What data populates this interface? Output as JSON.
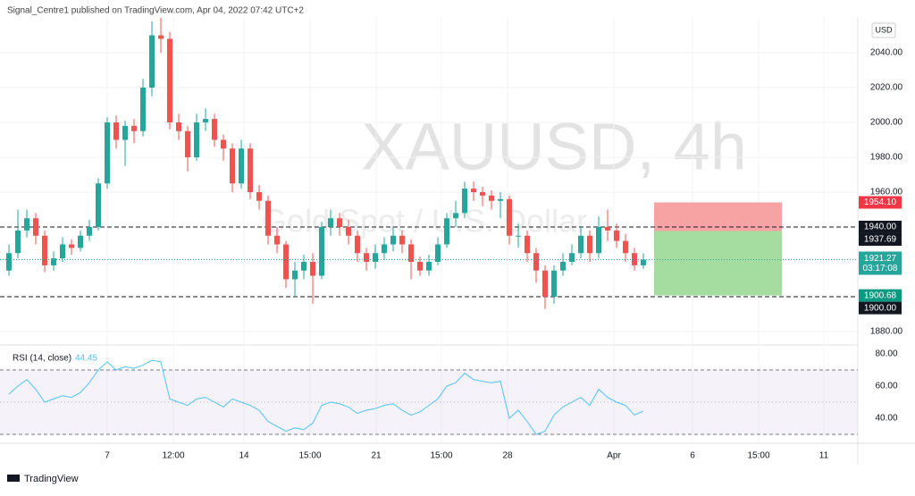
{
  "header": "Signal_Centre1 published on TradingView.com, Apr 04, 2022 07:42 UTC+2",
  "footer": "TradingView",
  "chart_data": [
    {
      "type": "candlestick",
      "watermark": "XAUUSD, 4h",
      "watermark_sub": "Gold Spot / U.S. Dollar",
      "currency": "USD",
      "open": [
        1915,
        1925,
        1938,
        1945,
        1935,
        1918,
        1922,
        1930,
        1928,
        1935,
        1940,
        1965,
        2000,
        1990,
        1998,
        1995,
        2020,
        2050,
        2048,
        2000,
        1995,
        1980,
        2000,
        2002,
        1990,
        1985,
        1965,
        1985,
        1960,
        1955,
        1935,
        1930,
        1910,
        1915,
        1920,
        1912,
        1940,
        1945,
        1940,
        1935,
        1925,
        1920,
        1925,
        1930,
        1935,
        1930,
        1920,
        1915,
        1920,
        1930,
        1945,
        1948,
        1962,
        1960,
        1958,
        1955,
        1956,
        1935,
        1935,
        1925,
        1915,
        1900,
        1915,
        1920,
        1925,
        1935,
        1925,
        1940,
        1938,
        1932,
        1925,
        1918
      ],
      "high": [
        1930,
        1950,
        1950,
        1948,
        1938,
        1926,
        1934,
        1933,
        1938,
        1944,
        1968,
        2003,
        2004,
        2001,
        2002,
        2025,
        2058,
        2060,
        2052,
        2005,
        1998,
        2005,
        2008,
        2005,
        1993,
        1988,
        1990,
        1988,
        1964,
        1958,
        1940,
        1932,
        1920,
        1924,
        1925,
        1943,
        1950,
        1948,
        1944,
        1938,
        1928,
        1930,
        1934,
        1940,
        1938,
        1933,
        1923,
        1924,
        1934,
        1948,
        1955,
        1966,
        1966,
        1963,
        1961,
        1960,
        1958,
        1942,
        1938,
        1928,
        1918,
        1918,
        1925,
        1930,
        1940,
        1938,
        1946,
        1950,
        1942,
        1936,
        1928,
        1925
      ],
      "low": [
        1912,
        1922,
        1934,
        1930,
        1914,
        1915,
        1920,
        1924,
        1926,
        1932,
        1938,
        1962,
        1985,
        1975,
        1988,
        1992,
        2015,
        2040,
        1996,
        1990,
        1972,
        1978,
        1995,
        1986,
        1978,
        1960,
        1962,
        1956,
        1950,
        1930,
        1925,
        1905,
        1900,
        1910,
        1896,
        1910,
        1935,
        1935,
        1930,
        1920,
        1915,
        1916,
        1921,
        1926,
        1925,
        1910,
        1912,
        1912,
        1918,
        1928,
        1940,
        1945,
        1955,
        1952,
        1950,
        1945,
        1930,
        1928,
        1920,
        1908,
        1893,
        1896,
        1912,
        1918,
        1922,
        1920,
        1922,
        1932,
        1928,
        1920,
        1915,
        1916
      ],
      "close": [
        1925,
        1938,
        1945,
        1935,
        1918,
        1922,
        1930,
        1928,
        1935,
        1940,
        1965,
        2000,
        1990,
        1998,
        1995,
        2020,
        2050,
        2048,
        2000,
        1995,
        1980,
        2000,
        2002,
        1990,
        1985,
        1965,
        1985,
        1960,
        1955,
        1935,
        1930,
        1910,
        1915,
        1920,
        1912,
        1940,
        1945,
        1940,
        1935,
        1925,
        1920,
        1925,
        1930,
        1935,
        1930,
        1920,
        1915,
        1920,
        1930,
        1945,
        1948,
        1962,
        1960,
        1958,
        1955,
        1956,
        1935,
        1935,
        1925,
        1915,
        1900,
        1915,
        1920,
        1925,
        1935,
        1925,
        1940,
        1938,
        1932,
        1925,
        1918,
        1921.27
      ],
      "up_color": "#26a69a",
      "down_color": "#ef5350",
      "ylim": [
        1872.8,
        2060
      ],
      "yticks": [
        {
          "value": 1880,
          "label": "1880.00"
        },
        {
          "value": 1960,
          "label": "1960.00"
        },
        {
          "value": 1980,
          "label": "1980.00"
        },
        {
          "value": 2000,
          "label": "2000.00"
        },
        {
          "value": 2020,
          "label": "2020.00"
        },
        {
          "value": 2040,
          "label": "2040.00"
        }
      ],
      "xlim": [
        -1,
        95
      ],
      "xticks": [
        {
          "value": 11,
          "label": "7"
        },
        {
          "value": 18.4,
          "label": "12:00"
        },
        {
          "value": 26.3,
          "label": "14"
        },
        {
          "value": 33.7,
          "label": "15:00"
        },
        {
          "value": 41.1,
          "label": "21"
        },
        {
          "value": 48.4,
          "label": "15:00"
        },
        {
          "value": 55.8,
          "label": "28"
        },
        {
          "value": 67.7,
          "label": "Apr"
        },
        {
          "value": 76.5,
          "label": "6"
        },
        {
          "value": 83.9,
          "label": "15:00"
        },
        {
          "value": 91.2,
          "label": "11"
        }
      ],
      "price_lines": [
        {
          "value": 1940,
          "label": "1940.00"
        },
        {
          "value": 1900,
          "label": "1900.00"
        }
      ],
      "position": {
        "stop": {
          "value": 1954.1,
          "label": "1954.10"
        },
        "entry": {
          "value": 1937.69,
          "label": "1937.69"
        },
        "target": {
          "value": 1900.68,
          "label": "1900.68"
        }
      },
      "countdown": "03:17:08"
    },
    {
      "type": "line",
      "name": "RSI (14, close)",
      "color": "#4fc3f7",
      "values": [
        55,
        60,
        64,
        58,
        50,
        52,
        54,
        53,
        56,
        62,
        70,
        75,
        70,
        72,
        71,
        73,
        76,
        75,
        52,
        50,
        48,
        52,
        53,
        50,
        47,
        52,
        50,
        48,
        45,
        38,
        35,
        32,
        34,
        33,
        37,
        48,
        50,
        49,
        47,
        43,
        45,
        46,
        48,
        49,
        45,
        42,
        44,
        48,
        52,
        60,
        62,
        68,
        64,
        63,
        62,
        63,
        40,
        45,
        38,
        30,
        32,
        42,
        47,
        50,
        53,
        48,
        58,
        53,
        50,
        48,
        42,
        44.45
      ],
      "ylim": [
        27.8,
        84.4
      ],
      "yticks": [
        {
          "value": 40,
          "label": "40.00"
        },
        {
          "value": 60,
          "label": "60.00"
        },
        {
          "value": 80,
          "label": "80.00"
        }
      ],
      "bands": [
        30,
        70
      ],
      "midline": 50
    }
  ]
}
